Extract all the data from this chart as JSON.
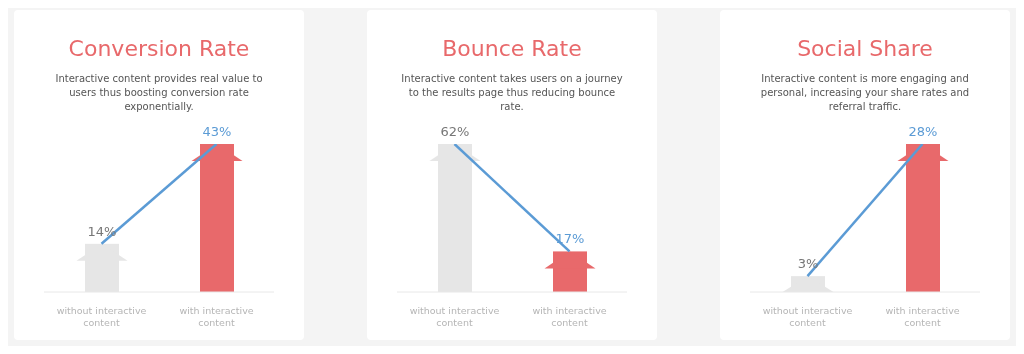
{
  "chart_data": [
    {
      "type": "bar",
      "title": "Conversion Rate",
      "subtitle": "Interactive content provides real value to users thus boosting conversion rate exponentially.",
      "categories": [
        "without interactive content",
        "with interactive content"
      ],
      "marker": "none",
      "series": [
        {
          "colors": [
            "#e6e6e6",
            "#e8696b"
          ],
          "values": [
            14,
            43
          ],
          "value_labels": [
            "14%",
            "43%"
          ]
        },
        {
          "type": "line",
          "color": "#5b9bd5",
          "values": [
            14,
            43
          ]
        }
      ]
    },
    {
      "type": "bar",
      "title": "Bounce Rate",
      "subtitle": "Interactive content takes users on a journey to the results page thus reducing bounce rate.",
      "categories": [
        "without interactive content",
        "with interactive content"
      ],
      "marker": "none",
      "series": [
        {
          "colors": [
            "#e6e6e6",
            "#e8696b"
          ],
          "values": [
            62,
            17
          ],
          "value_labels": [
            "62%",
            "17%"
          ]
        },
        {
          "type": "line",
          "color": "#5b9bd5",
          "values": [
            62,
            17
          ]
        }
      ]
    },
    {
      "type": "bar",
      "title": "Social Share",
      "subtitle": "Interactive content is more engaging and personal, increasing your share rates and referral traffic.",
      "categories": [
        "without interactive content",
        "with interactive content"
      ],
      "marker": "none",
      "series": [
        {
          "colors": [
            "#e6e6e6",
            "#e8696b"
          ],
          "values": [
            3,
            28
          ],
          "value_labels": [
            "3%",
            "28%"
          ]
        },
        {
          "type": "line",
          "color": "#5b9bd5",
          "values": [
            3,
            28
          ]
        }
      ]
    }
  ]
}
